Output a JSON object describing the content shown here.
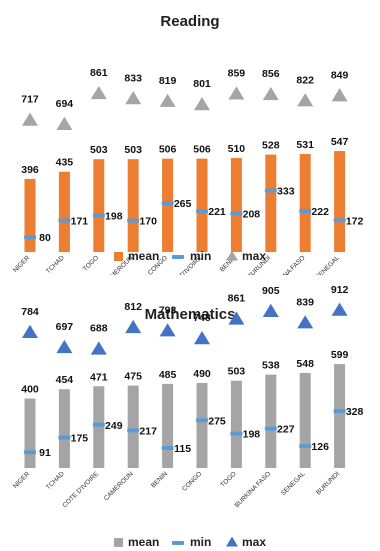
{
  "chart_data": [
    {
      "type": "bar",
      "title": "Reading",
      "categories": [
        "NIGER",
        "TCHAD",
        "TOGO",
        "CAMEROUN",
        "CONGO",
        "COTE D'IVOIRE",
        "BENIN",
        "BURUNDI",
        "BURKINA FASO",
        "SENEGAL"
      ],
      "series": [
        {
          "name": "mean",
          "marker": "bar",
          "color": "#ED7D31",
          "values": [
            396,
            435,
            503,
            503,
            506,
            506,
            510,
            528,
            531,
            547
          ]
        },
        {
          "name": "min",
          "marker": "dash",
          "color": "#5B9BD5",
          "values": [
            80,
            171,
            198,
            170,
            265,
            221,
            208,
            333,
            222,
            172
          ]
        },
        {
          "name": "max",
          "marker": "triangle",
          "color": "#A5A5A5",
          "values": [
            717,
            694,
            861,
            833,
            819,
            801,
            859,
            856,
            822,
            849
          ]
        }
      ],
      "ylim": [
        0,
        950
      ],
      "grid": false,
      "legend": "bottom"
    },
    {
      "type": "bar",
      "title": "Mathematics",
      "categories": [
        "NIGER",
        "TCHAD",
        "COTE D'IVOIRE",
        "CAMEROUN",
        "BENIN",
        "CONGO",
        "TOGO",
        "BURKINA FASO",
        "SENEGAL",
        "BURUNDI"
      ],
      "series": [
        {
          "name": "mean",
          "marker": "bar",
          "color": "#A5A5A5",
          "values": [
            400,
            454,
            471,
            475,
            485,
            490,
            503,
            538,
            548,
            599
          ]
        },
        {
          "name": "min",
          "marker": "dash",
          "color": "#5B9BD5",
          "values": [
            91,
            175,
            249,
            217,
            115,
            275,
            198,
            227,
            126,
            328
          ]
        },
        {
          "name": "max",
          "marker": "triangle",
          "color": "#4472C4",
          "values": [
            784,
            697,
            688,
            812,
            793,
            748,
            861,
            905,
            839,
            912
          ]
        }
      ],
      "ylim": [
        0,
        1000
      ],
      "grid": false,
      "legend": "bottom"
    }
  ]
}
